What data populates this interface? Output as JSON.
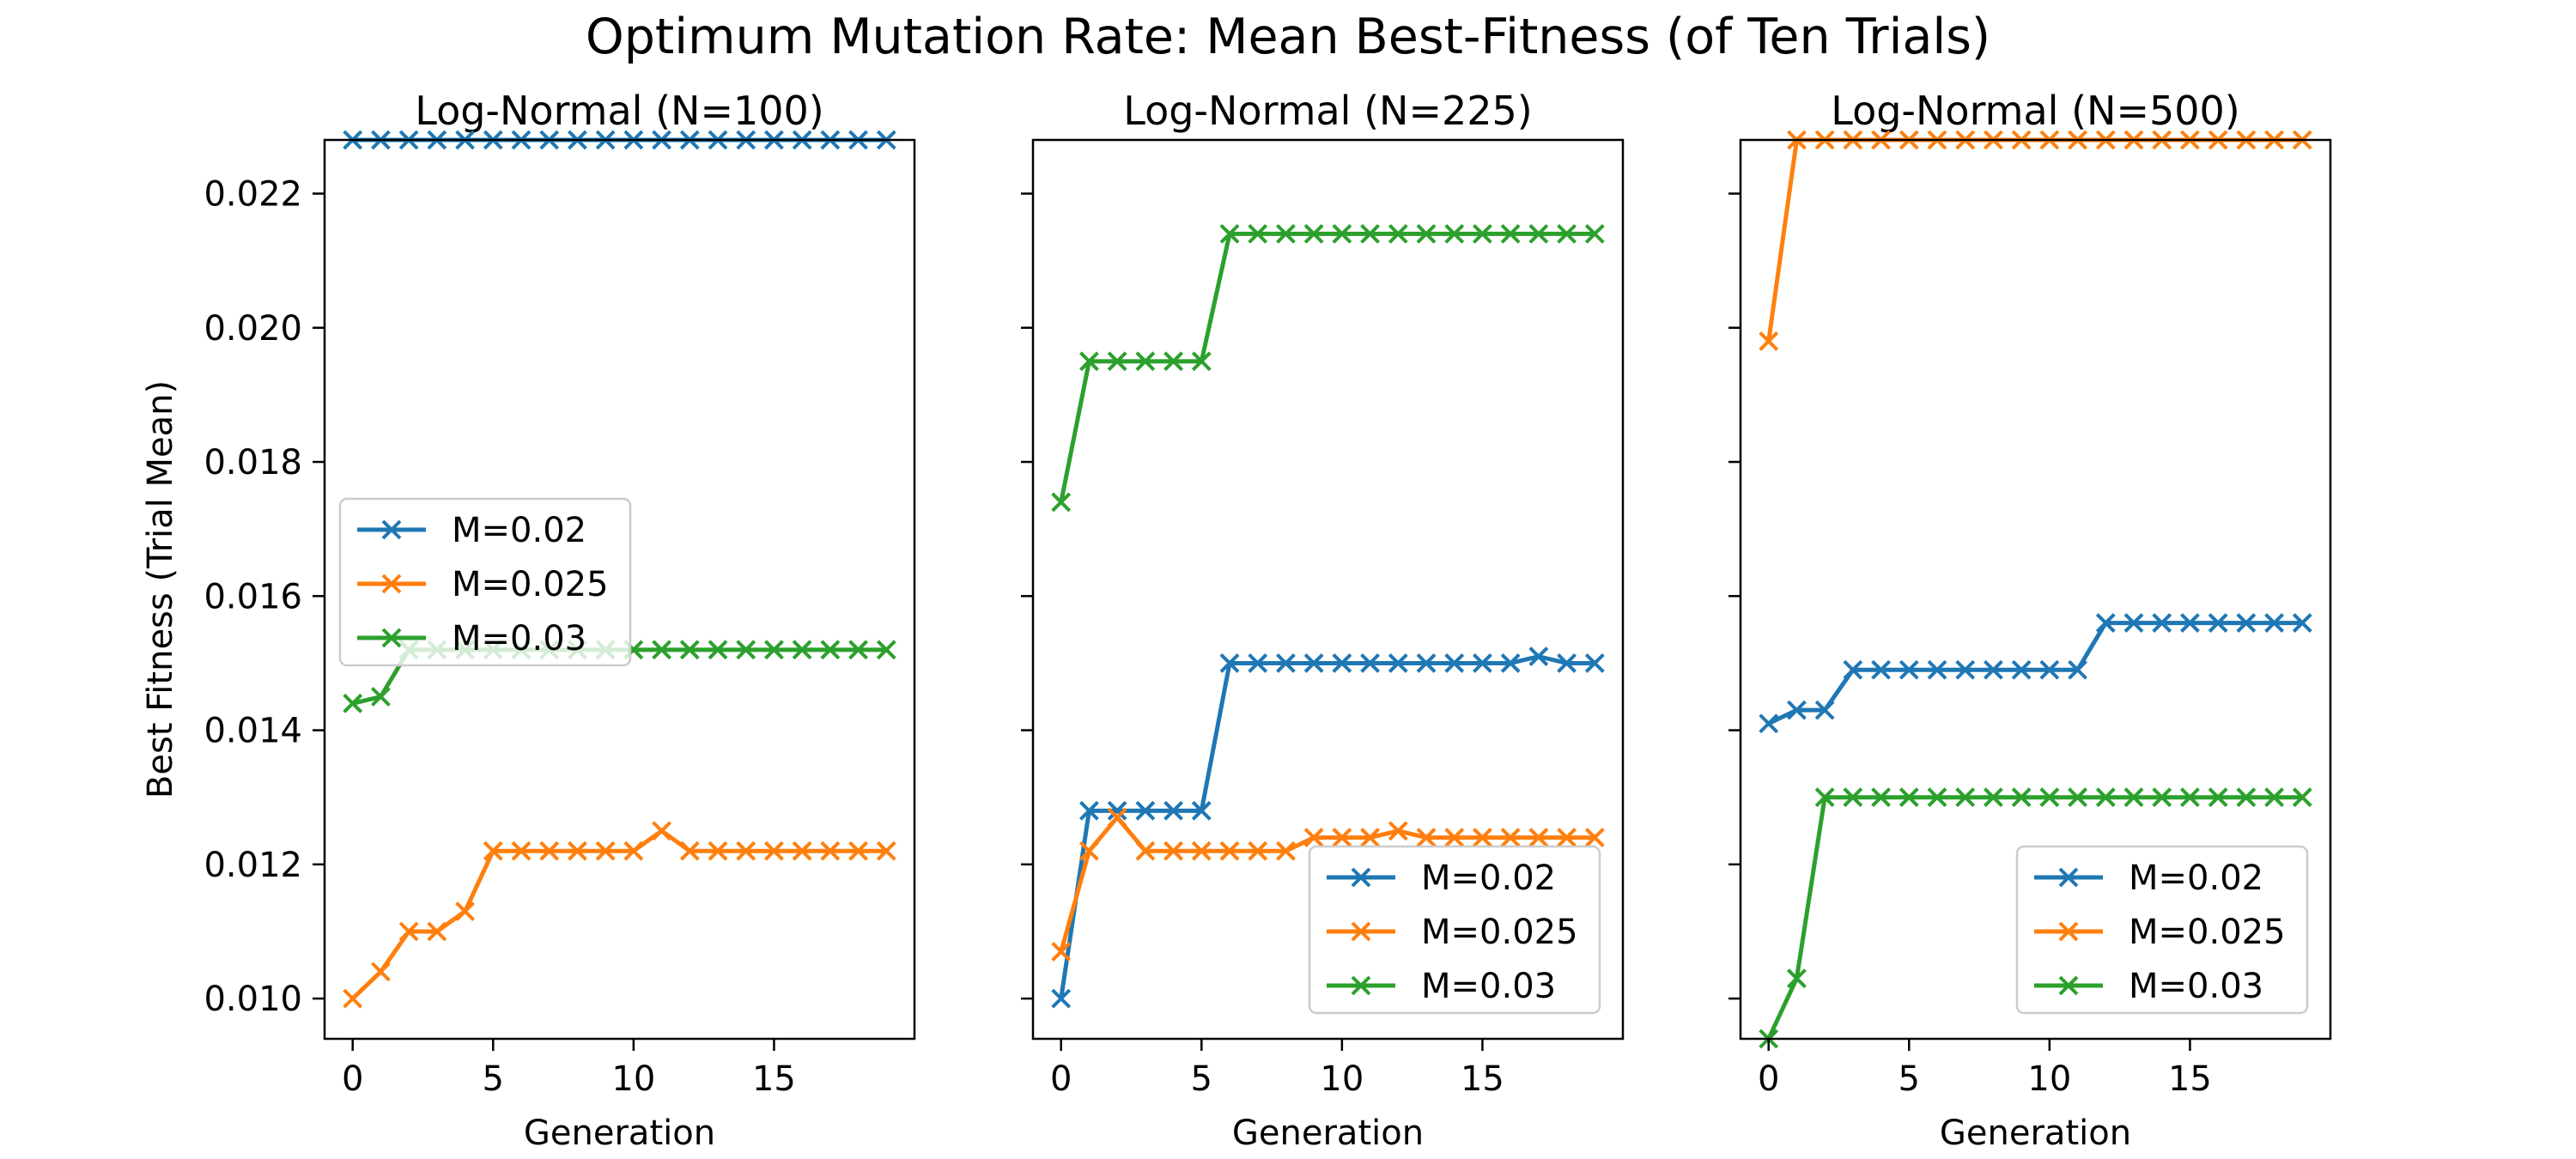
{
  "figure": {
    "title": "Optimum Mutation Rate: Mean Best-Fitness (of Ten Trials)"
  },
  "chart_data": [
    {
      "type": "line",
      "title": "Log-Normal (N=100)",
      "xlabel": "Generation",
      "ylabel": "Best Fitness (Trial Mean)",
      "xlim": [
        -1,
        20
      ],
      "ylim": [
        0.0094,
        0.0228
      ],
      "xticks": [
        0,
        5,
        10,
        15
      ],
      "yticks": [
        0.01,
        0.012,
        0.014,
        0.016,
        0.018,
        0.02,
        0.022
      ],
      "ytick_labels": [
        "0.010",
        "0.012",
        "0.014",
        "0.016",
        "0.018",
        "0.020",
        "0.022"
      ],
      "marker": "x",
      "legend": "center-left",
      "x": [
        0,
        1,
        2,
        3,
        4,
        5,
        6,
        7,
        8,
        9,
        10,
        11,
        12,
        13,
        14,
        15,
        16,
        17,
        18,
        19
      ],
      "series": [
        {
          "name": "M=0.02",
          "color": "#1f77b4",
          "values": [
            0.0228,
            0.0228,
            0.0228,
            0.0228,
            0.0228,
            0.0228,
            0.0228,
            0.0228,
            0.0228,
            0.0228,
            0.0228,
            0.0228,
            0.0228,
            0.0228,
            0.0228,
            0.0228,
            0.0228,
            0.0228,
            0.0228,
            0.0228
          ]
        },
        {
          "name": "M=0.025",
          "color": "#ff7f0e",
          "values": [
            0.01,
            0.0104,
            0.011,
            0.011,
            0.0113,
            0.0122,
            0.0122,
            0.0122,
            0.0122,
            0.0122,
            0.0122,
            0.0125,
            0.0122,
            0.0122,
            0.0122,
            0.0122,
            0.0122,
            0.0122,
            0.0122,
            0.0122
          ]
        },
        {
          "name": "M=0.03",
          "color": "#2ca02c",
          "values": [
            0.0144,
            0.0145,
            0.0152,
            0.0152,
            0.0152,
            0.0152,
            0.0152,
            0.0152,
            0.0152,
            0.0152,
            0.0152,
            0.0152,
            0.0152,
            0.0152,
            0.0152,
            0.0152,
            0.0152,
            0.0152,
            0.0152,
            0.0152
          ]
        }
      ]
    },
    {
      "type": "line",
      "title": "Log-Normal (N=225)",
      "xlabel": "Generation",
      "ylabel": "",
      "xlim": [
        -1,
        20
      ],
      "ylim": [
        0.0094,
        0.0228
      ],
      "xticks": [
        0,
        5,
        10,
        15
      ],
      "yticks": [
        0.01,
        0.012,
        0.014,
        0.016,
        0.018,
        0.02,
        0.022
      ],
      "ytick_labels": [],
      "marker": "x",
      "legend": "lower-right",
      "x": [
        0,
        1,
        2,
        3,
        4,
        5,
        6,
        7,
        8,
        9,
        10,
        11,
        12,
        13,
        14,
        15,
        16,
        17,
        18,
        19
      ],
      "series": [
        {
          "name": "M=0.02",
          "color": "#1f77b4",
          "values": [
            0.01,
            0.0128,
            0.0128,
            0.0128,
            0.0128,
            0.0128,
            0.015,
            0.015,
            0.015,
            0.015,
            0.015,
            0.015,
            0.015,
            0.015,
            0.015,
            0.015,
            0.015,
            0.0151,
            0.015,
            0.015
          ]
        },
        {
          "name": "M=0.025",
          "color": "#ff7f0e",
          "values": [
            0.0107,
            0.0122,
            0.0127,
            0.0122,
            0.0122,
            0.0122,
            0.0122,
            0.0122,
            0.0122,
            0.0124,
            0.0124,
            0.0124,
            0.0125,
            0.0124,
            0.0124,
            0.0124,
            0.0124,
            0.0124,
            0.0124,
            0.0124
          ]
        },
        {
          "name": "M=0.03",
          "color": "#2ca02c",
          "values": [
            0.0174,
            0.0195,
            0.0195,
            0.0195,
            0.0195,
            0.0195,
            0.0214,
            0.0214,
            0.0214,
            0.0214,
            0.0214,
            0.0214,
            0.0214,
            0.0214,
            0.0214,
            0.0214,
            0.0214,
            0.0214,
            0.0214,
            0.0214
          ]
        }
      ]
    },
    {
      "type": "line",
      "title": "Log-Normal (N=500)",
      "xlabel": "Generation",
      "ylabel": "",
      "xlim": [
        -1,
        20
      ],
      "ylim": [
        0.0094,
        0.0228
      ],
      "xticks": [
        0,
        5,
        10,
        15
      ],
      "yticks": [
        0.01,
        0.012,
        0.014,
        0.016,
        0.018,
        0.02,
        0.022
      ],
      "ytick_labels": [],
      "marker": "x",
      "legend": "lower-right",
      "x": [
        0,
        1,
        2,
        3,
        4,
        5,
        6,
        7,
        8,
        9,
        10,
        11,
        12,
        13,
        14,
        15,
        16,
        17,
        18,
        19
      ],
      "series": [
        {
          "name": "M=0.02",
          "color": "#1f77b4",
          "values": [
            0.0141,
            0.0143,
            0.0143,
            0.0149,
            0.0149,
            0.0149,
            0.0149,
            0.0149,
            0.0149,
            0.0149,
            0.0149,
            0.0149,
            0.0156,
            0.0156,
            0.0156,
            0.0156,
            0.0156,
            0.0156,
            0.0156,
            0.0156
          ]
        },
        {
          "name": "M=0.025",
          "color": "#ff7f0e",
          "values": [
            0.0198,
            0.0228,
            0.0228,
            0.0228,
            0.0228,
            0.0228,
            0.0228,
            0.0228,
            0.0228,
            0.0228,
            0.0228,
            0.0228,
            0.0228,
            0.0228,
            0.0228,
            0.0228,
            0.0228,
            0.0228,
            0.0228,
            0.0228
          ]
        },
        {
          "name": "M=0.03",
          "color": "#2ca02c",
          "values": [
            0.0094,
            0.0103,
            0.013,
            0.013,
            0.013,
            0.013,
            0.013,
            0.013,
            0.013,
            0.013,
            0.013,
            0.013,
            0.013,
            0.013,
            0.013,
            0.013,
            0.013,
            0.013,
            0.013,
            0.013
          ]
        }
      ]
    }
  ]
}
